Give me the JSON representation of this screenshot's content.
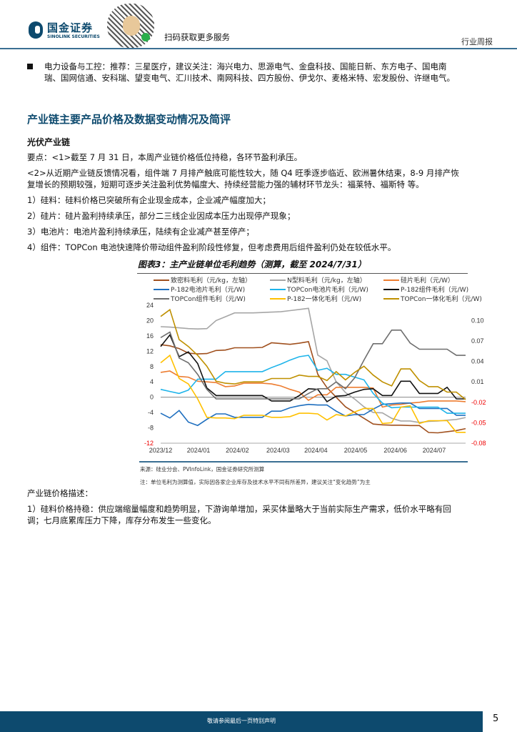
{
  "header": {
    "logo_cn": "国金证券",
    "logo_en": "SINOLINK SECURITIES",
    "qr_caption": "扫码获取更多服务",
    "report_type": "行业周报"
  },
  "bullet": {
    "line1": "电力设备与工控：推荐：三星医疗，建议关注：海兴电力、思源电气、金盘科技、国能日新、东方电子、国电南",
    "line2": "瑞、国网信通、安科瑞、望变电气、汇川技术、南网科技、四方股份、伊戈尔、麦格米特、宏发股份、许继电气。"
  },
  "section_title": "产业链主要产品价格及数据变动情况及简评",
  "subsection_title": "光伏产业链",
  "paragraphs": [
    "要点：<1>截至 7 月 31 日，本周产业链价格低位持稳，各环节盈利承压。",
    "<2>从近期产业链反馈情况看，组件端 7 月排产触底可能性较大，随 Q4 旺季逐步临近、欧洲暑休结束，8-9 月排产恢",
    "复增长的预期较强，短期可逐步关注盈利优势幅度大、持续经营能力强的辅材环节龙头：福莱特、福斯特 等。",
    "1）硅料：硅料价格已突破所有企业现金成本，企业减产幅度加大；",
    "2）硅片：硅片盈利持续承压，部分二三线企业因成本压力出现停产现象；",
    "3）电池片：电池片盈利持续承压，陆续有企业减产甚至停产；",
    "4）组件：TOPCon 电池快速降价带动组件盈利阶段性修复，但考虑费用后组件盈利仍处在较低水平。"
  ],
  "chart_source": "来源：硅业分会、PVInfoLink，国金证券研究所测算",
  "chart_note": "注：单位毛利为测算值，实际因各家企业库存及技术水平不同有所差异，建议关注“变化趋势”为主",
  "desc_title": "产业链价格描述：",
  "desc_lines": [
    "1）硅料价格持稳：供应端缩量幅度和趋势明显，下游询单增加，采买体量略大于当前实际生产需求，低价水平略有回",
    "调；七月底累库压力下降，库存分布发生一些变化。"
  ],
  "footer": {
    "disclaimer": "敬请参阅最后一页特别声明",
    "page": "5"
  },
  "chart_data": {
    "type": "line",
    "title": "图表3：主产业链单位毛利趋势（测算，截至 2024/7/31）",
    "x_labels": [
      "2023/12",
      "2024/01",
      "2024/02",
      "2024/03",
      "2024/04",
      "2024/05",
      "2024/06",
      "2024/07"
    ],
    "x_label_weeks": [
      0,
      4.1,
      8.3,
      12.7,
      16.8,
      21.1,
      25.4,
      29.6
    ],
    "weeks": 34,
    "left_ticks": [
      "24",
      "20",
      "16",
      "12",
      "8",
      "4",
      "0",
      "-4",
      "-8",
      "-12"
    ],
    "left_ylim": [
      -12,
      24
    ],
    "right_ticks": [
      "0.10",
      "0.07",
      "0.04",
      "0.01",
      "-0.02",
      "-0.05",
      "-0.08"
    ],
    "right_ylim": [
      -0.08,
      0.1225
    ],
    "grid": false,
    "legend": "top",
    "series": [
      {
        "name": "致密料毛利（元/kg，左轴）",
        "axis": "left",
        "color": "#a0501e",
        "values": [
          13.7,
          13.4,
          12.7,
          11.5,
          11.3,
          11.4,
          12.2,
          12.3,
          12.9,
          12.9,
          12.9,
          13,
          14.2,
          14,
          13.8,
          14.1,
          14.5,
          6,
          2.5,
          0,
          -2.5,
          -4,
          -5.5,
          -7,
          -7.2,
          -7.3,
          -7.3,
          -7.4,
          -7.4,
          -9.2,
          -9.3,
          -9,
          -8.7,
          -8.2
        ]
      },
      {
        "name": "N型料毛利（元/kg，左轴）",
        "axis": "left",
        "color": "#a6a6a6",
        "values": [
          18.4,
          18.3,
          18.1,
          17.9,
          17.8,
          17.9,
          20,
          21,
          22,
          22,
          22,
          22.1,
          22.2,
          22.3,
          22.6,
          22.9,
          23.2,
          11,
          9.5,
          4,
          1.2,
          -0.5,
          -2.5,
          -4,
          -4.1,
          -5.5,
          -6.2,
          -6.2,
          -6.6,
          -6.3,
          -6.2,
          -6,
          -5.8,
          -5.3
        ]
      },
      {
        "name": "硅片毛利（元/W）",
        "axis": "right",
        "color": "#ed7d31",
        "values": [
          0.024,
          0.026,
          0.018,
          0.017,
          0.011,
          0.01,
          0.009,
          0.003,
          0.004,
          0.008,
          0.008,
          0.008,
          0.007,
          0.004,
          -0.001,
          -0.005,
          -0.017,
          -0.009,
          -0.009,
          0.002,
          0.002,
          0.002,
          0.002,
          0.001,
          -0.027,
          -0.024,
          -0.023,
          -0.021,
          -0.02,
          -0.018,
          -0.018,
          -0.018,
          -0.018,
          -0.019
        ]
      },
      {
        "name": "P-182电池片毛利（元/W)",
        "axis": "right",
        "color": "#1f6fbf",
        "values": [
          -0.036,
          -0.043,
          -0.032,
          -0.049,
          -0.054,
          -0.045,
          -0.037,
          -0.037,
          -0.042,
          -0.042,
          -0.042,
          -0.042,
          -0.033,
          -0.033,
          -0.028,
          -0.025,
          -0.023,
          -0.024,
          -0.024,
          -0.033,
          -0.04,
          -0.038,
          -0.038,
          -0.03,
          -0.023,
          -0.022,
          -0.021,
          -0.021,
          -0.029,
          -0.029,
          -0.029,
          -0.029,
          -0.039,
          -0.039
        ]
      },
      {
        "name": "TOPCon电池片毛利（元/W)",
        "axis": "right",
        "color": "#1eb4ea",
        "values": [
          -0.001,
          -0.004,
          -0.007,
          -0.002,
          0.014,
          0.014,
          0.014,
          0.025,
          0.025,
          0.025,
          0.025,
          0.025,
          0.031,
          0.036,
          0.042,
          0.047,
          0.049,
          0.027,
          0.03,
          0.021,
          0.021,
          0.017,
          0.013,
          -0.007,
          -0.021,
          -0.028,
          -0.027,
          -0.027,
          -0.027,
          -0.027,
          -0.027,
          -0.036,
          -0.036,
          -0.036
        ]
      },
      {
        "name": "P-182组件毛利（元/W)",
        "axis": "right",
        "color": "#111111",
        "values": [
          0.062,
          0.079,
          0.047,
          0.054,
          0.037,
          0.001,
          -0.01,
          -0.01,
          -0.01,
          -0.01,
          -0.01,
          -0.01,
          -0.018,
          -0.018,
          -0.018,
          -0.01,
          0.0,
          -0.001,
          -0.019,
          -0.011,
          -0.01,
          -0.005,
          -0.001,
          0.0,
          -0.01,
          -0.01,
          0.011,
          0.011,
          -0.007,
          -0.007,
          -0.007,
          0.002,
          -0.015,
          -0.015
        ]
      },
      {
        "name": "TOPCon组件毛利（元/W)",
        "axis": "right",
        "color": "#6e6e6e",
        "values": [
          0.075,
          0.083,
          0.045,
          0.038,
          0.021,
          -0.001,
          -0.015,
          -0.015,
          -0.015,
          -0.015,
          -0.015,
          -0.015,
          -0.015,
          -0.015,
          -0.015,
          -0.015,
          -0.007,
          0.0,
          0.0,
          0.01,
          0.0,
          0.016,
          0.042,
          0.066,
          0.066,
          0.086,
          0.086,
          0.067,
          0.058,
          0.058,
          0.058,
          0.058,
          0.049,
          0.049
        ]
      },
      {
        "name": "P-182一体化毛利（元/W)",
        "axis": "right",
        "color": "#ffc000",
        "values": [
          0.038,
          0.049,
          0.015,
          0.007,
          -0.015,
          -0.042,
          -0.043,
          -0.043,
          -0.044,
          -0.039,
          -0.039,
          -0.039,
          -0.042,
          -0.042,
          -0.041,
          -0.036,
          -0.036,
          -0.037,
          -0.046,
          -0.038,
          -0.04,
          -0.034,
          -0.029,
          -0.029,
          -0.051,
          -0.05,
          -0.027,
          -0.025,
          -0.051,
          -0.047,
          -0.047,
          -0.047,
          -0.064,
          -0.064
        ]
      },
      {
        "name": "TOPCon一体化毛利（元/W)",
        "axis": "right",
        "color": "#bf9000",
        "values": [
          0.106,
          0.116,
          0.072,
          0.062,
          0.049,
          0.033,
          0.011,
          0.008,
          0.007,
          0.01,
          0.01,
          0.01,
          0.015,
          0.015,
          0.015,
          0.02,
          0.018,
          0.018,
          0.012,
          0.025,
          0.013,
          0.024,
          0.033,
          0.02,
          0.01,
          0.004,
          0.029,
          0.029,
          0.012,
          0.003,
          0.003,
          -0.005,
          -0.005,
          -0.016
        ]
      }
    ]
  }
}
